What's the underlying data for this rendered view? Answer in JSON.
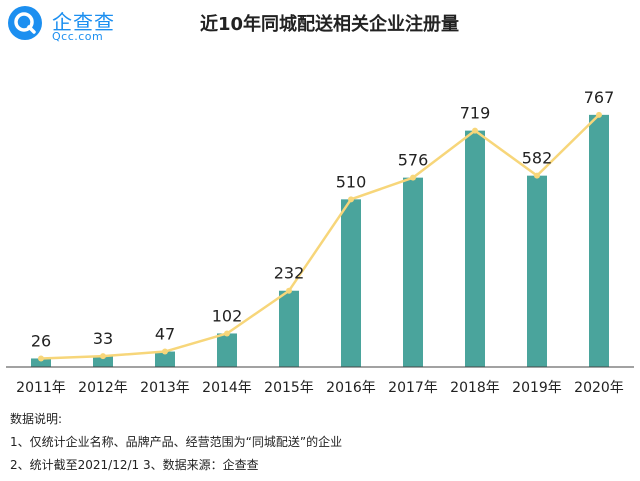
{
  "logo": {
    "name": "企查查",
    "domain": "Qcc.com",
    "color": "#1c8ff0"
  },
  "title": "近10年同城配送相关企业注册量",
  "chart_data": {
    "type": "bar",
    "title": "近10年同城配送相关企业注册量",
    "categories": [
      "2011年",
      "2012年",
      "2013年",
      "2014年",
      "2015年",
      "2016年",
      "2017年",
      "2018年",
      "2019年",
      "2020年"
    ],
    "series": [
      {
        "values": [
          26,
          33,
          47,
          102,
          232,
          510,
          576,
          719,
          582,
          767
        ]
      }
    ],
    "overlay_line": true,
    "data_labels": true,
    "ylim": [
      0,
      800
    ],
    "grid": false,
    "colors": {
      "bar": "#4aa49c",
      "line": "#f7d67a"
    }
  },
  "notes": {
    "heading": "数据说明:",
    "line1": "1、仅统计企业名称、品牌产品、经营范围为“同城配送”的企业",
    "line2": "2、统计截至2021/12/1    3、数据来源：企查查"
  }
}
